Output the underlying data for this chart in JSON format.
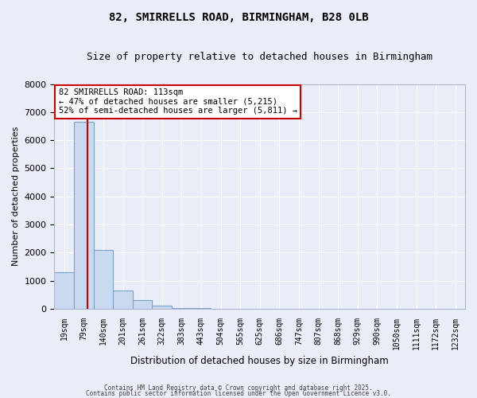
{
  "title1": "82, SMIRRELLS ROAD, BIRMINGHAM, B28 0LB",
  "title2": "Size of property relative to detached houses in Birmingham",
  "xlabel": "Distribution of detached houses by size in Birmingham",
  "ylabel": "Number of detached properties",
  "categories": [
    "19sqm",
    "79sqm",
    "140sqm",
    "201sqm",
    "261sqm",
    "322sqm",
    "383sqm",
    "443sqm",
    "504sqm",
    "565sqm",
    "625sqm",
    "686sqm",
    "747sqm",
    "807sqm",
    "868sqm",
    "929sqm",
    "990sqm",
    "1050sqm",
    "1111sqm",
    "1172sqm",
    "1232sqm"
  ],
  "values": [
    1300,
    6650,
    2100,
    650,
    300,
    100,
    30,
    10,
    5,
    3,
    2,
    1,
    1,
    0,
    0,
    0,
    0,
    0,
    0,
    0,
    0
  ],
  "bar_facecolor": "#c9d9ef",
  "bar_edgecolor": "#7ba3cc",
  "property_line_color": "#cc0000",
  "property_line_x": 1.2,
  "annotation_text": "82 SMIRRELLS ROAD: 113sqm\n← 47% of detached houses are smaller (5,215)\n52% of semi-detached houses are larger (5,811) →",
  "annotation_box_color": "#ffffff",
  "annotation_box_edge_color": "#cc0000",
  "ylim": [
    0,
    8000
  ],
  "yticks": [
    0,
    1000,
    2000,
    3000,
    4000,
    5000,
    6000,
    7000,
    8000
  ],
  "background_color": "#e8edf8",
  "grid_color": "#ffffff",
  "footer1": "Contains HM Land Registry data © Crown copyright and database right 2025.",
  "footer2": "Contains public sector information licensed under the Open Government Licence v3.0."
}
